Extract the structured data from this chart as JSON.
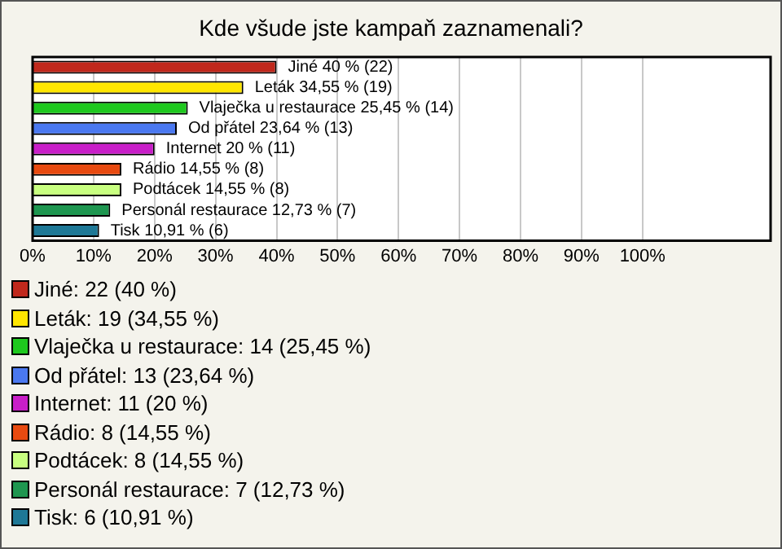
{
  "chart_data": {
    "type": "bar",
    "orientation": "horizontal",
    "title": "Kde všude jste kampaň zaznamenali?",
    "categories": [
      "Jiné",
      "Leták",
      "Vlaječka u restaurace",
      "Od přátel",
      "Internet",
      "Rádio",
      "Podtácek",
      "Personál restaurace",
      "Tisk"
    ],
    "values": [
      40,
      34.55,
      25.45,
      23.64,
      20,
      14.55,
      14.55,
      12.73,
      10.91
    ],
    "colors": [
      "#c0281c",
      "#ffe600",
      "#1ec81e",
      "#4a78f0",
      "#c81ec8",
      "#e84a10",
      "#c8ff80",
      "#1e9650",
      "#1e7896"
    ],
    "value_labels": [
      "40 % (22)",
      "34,55 % (19)",
      "25,45 % (14)",
      "23,64 % (13)",
      "20 % (11)",
      "14,55 % (8)",
      "14,55 % (8)",
      "12,73 % (7)",
      "10,91 % (6)"
    ],
    "xlim": [
      0,
      121
    ],
    "xticks": [
      {
        "value": 0,
        "label": "0%"
      },
      {
        "value": 10,
        "label": "10%"
      },
      {
        "value": 20,
        "label": "20%"
      },
      {
        "value": 30,
        "label": "30%"
      },
      {
        "value": 40,
        "label": "40%"
      },
      {
        "value": 50,
        "label": "50%"
      },
      {
        "value": 60,
        "label": "60%"
      },
      {
        "value": 70,
        "label": "70%"
      },
      {
        "value": 80,
        "label": "80%"
      },
      {
        "value": 90,
        "label": "90%"
      },
      {
        "value": 100,
        "label": "100%"
      }
    ],
    "grid": "x",
    "tick_labels": "x",
    "annotations": [
      "Jiné: 22 (40 %)",
      "Leták: 19 (34,55 %)",
      "Vlaječka u restaurace: 14 (25,45 %)",
      "Od přátel: 13 (23,64 %)",
      "Internet: 11 (20 %)",
      "Rádio: 8 (14,55 %)",
      "Podtácek: 8 (14,55 %)",
      "Personál restaurace: 7 (12,73 %)",
      "Tisk: 6 (10,91 %)"
    ]
  }
}
